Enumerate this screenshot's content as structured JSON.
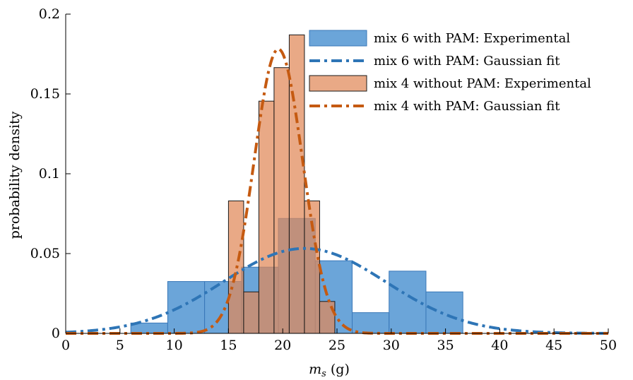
{
  "chart_data": {
    "type": "histogram",
    "xlabel": "m",
    "xlabel_sub": "s",
    "xlabel_unit": " (g)",
    "ylabel": "probability density",
    "xlim": [
      0,
      50
    ],
    "ylim": [
      0,
      0.2
    ],
    "x_ticks": [
      "0",
      "5",
      "10",
      "15",
      "20",
      "25",
      "30",
      "35",
      "40",
      "45",
      "50"
    ],
    "y_ticks": [
      "0",
      "0.05",
      "0.1",
      "0.15",
      "0.2"
    ],
    "grid": false,
    "legend_position": "top-right",
    "colors": {
      "blue_fill": "#5b9bd5",
      "blue_edge": "#3a78b8",
      "blue_line": "#2e75b6",
      "orange_fill": "#e08858",
      "orange_edge": "#1a1a1a",
      "orange_line": "#c55a11"
    },
    "series": [
      {
        "name": "mix 6 with PAM: Experimental",
        "kind": "histogram",
        "bins": [
          {
            "x0": 6.0,
            "x1": 9.4,
            "y": 0.0065
          },
          {
            "x0": 9.4,
            "x1": 12.8,
            "y": 0.0325
          },
          {
            "x0": 12.8,
            "x1": 16.2,
            "y": 0.0325
          },
          {
            "x0": 16.2,
            "x1": 19.6,
            "y": 0.0415
          },
          {
            "x0": 19.6,
            "x1": 23.0,
            "y": 0.072
          },
          {
            "x0": 23.0,
            "x1": 26.4,
            "y": 0.0455
          },
          {
            "x0": 26.4,
            "x1": 29.8,
            "y": 0.013
          },
          {
            "x0": 29.8,
            "x1": 33.2,
            "y": 0.039
          },
          {
            "x0": 33.2,
            "x1": 36.6,
            "y": 0.026
          }
        ]
      },
      {
        "name": "mix 6 with PAM: Gaussian fit",
        "kind": "gaussian",
        "mean": 22.0,
        "sd": 7.5
      },
      {
        "name": "mix 4 without PAM: Experimental",
        "kind": "histogram",
        "bins": [
          {
            "x0": 15.0,
            "x1": 16.4,
            "y": 0.083
          },
          {
            "x0": 16.4,
            "x1": 17.8,
            "y": 0.026
          },
          {
            "x0": 17.8,
            "x1": 19.2,
            "y": 0.1455
          },
          {
            "x0": 19.2,
            "x1": 20.6,
            "y": 0.1665
          },
          {
            "x0": 20.6,
            "x1": 22.0,
            "y": 0.187
          },
          {
            "x0": 22.0,
            "x1": 23.4,
            "y": 0.083
          },
          {
            "x0": 23.4,
            "x1": 24.8,
            "y": 0.02
          }
        ]
      },
      {
        "name": "mix 4 with PAM: Gaussian fit",
        "kind": "gaussian",
        "mean": 19.6,
        "sd": 2.24
      }
    ]
  }
}
